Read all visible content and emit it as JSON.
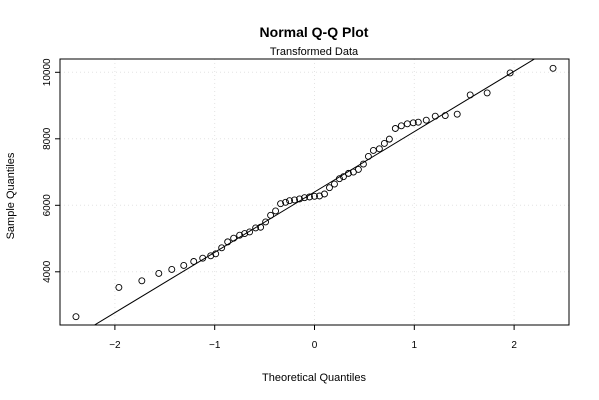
{
  "chart_data": {
    "type": "scatter",
    "title": "Normal Q-Q Plot",
    "subtitle": "Transformed Data",
    "xlabel": "Theoretical Quantiles",
    "ylabel": "Sample Quantiles",
    "xlim": [
      -2.55,
      2.55
    ],
    "ylim": [
      2400,
      10400
    ],
    "xticks": [
      -2,
      -1,
      0,
      1,
      2
    ],
    "yticks": [
      4000,
      6000,
      8000,
      10000
    ],
    "grid": true,
    "reference_line": {
      "slope": 1815,
      "intercept": 6400
    },
    "points": [
      [
        -2.39,
        2650
      ],
      [
        -1.96,
        3530
      ],
      [
        -1.73,
        3730
      ],
      [
        -1.56,
        3950
      ],
      [
        -1.43,
        4070
      ],
      [
        -1.31,
        4190
      ],
      [
        -1.21,
        4310
      ],
      [
        -1.12,
        4410
      ],
      [
        -1.04,
        4480
      ],
      [
        -0.99,
        4540
      ],
      [
        -0.93,
        4720
      ],
      [
        -0.87,
        4900
      ],
      [
        -0.81,
        5010
      ],
      [
        -0.75,
        5100
      ],
      [
        -0.7,
        5150
      ],
      [
        -0.65,
        5200
      ],
      [
        -0.59,
        5320
      ],
      [
        -0.54,
        5340
      ],
      [
        -0.49,
        5500
      ],
      [
        -0.44,
        5700
      ],
      [
        -0.39,
        5830
      ],
      [
        -0.34,
        6050
      ],
      [
        -0.29,
        6090
      ],
      [
        -0.25,
        6140
      ],
      [
        -0.2,
        6160
      ],
      [
        -0.15,
        6190
      ],
      [
        -0.1,
        6230
      ],
      [
        -0.05,
        6250
      ],
      [
        0.0,
        6270
      ],
      [
        0.05,
        6280
      ],
      [
        0.1,
        6340
      ],
      [
        0.15,
        6530
      ],
      [
        0.2,
        6640
      ],
      [
        0.25,
        6800
      ],
      [
        0.29,
        6860
      ],
      [
        0.34,
        6960
      ],
      [
        0.39,
        7000
      ],
      [
        0.44,
        7080
      ],
      [
        0.49,
        7240
      ],
      [
        0.54,
        7470
      ],
      [
        0.59,
        7650
      ],
      [
        0.65,
        7700
      ],
      [
        0.7,
        7860
      ],
      [
        0.75,
        7990
      ],
      [
        0.81,
        8310
      ],
      [
        0.87,
        8390
      ],
      [
        0.93,
        8450
      ],
      [
        0.99,
        8480
      ],
      [
        1.04,
        8500
      ],
      [
        1.12,
        8560
      ],
      [
        1.21,
        8680
      ],
      [
        1.31,
        8700
      ],
      [
        1.43,
        8740
      ],
      [
        1.56,
        9320
      ],
      [
        1.73,
        9380
      ],
      [
        1.96,
        9980
      ],
      [
        2.39,
        10120
      ]
    ]
  }
}
